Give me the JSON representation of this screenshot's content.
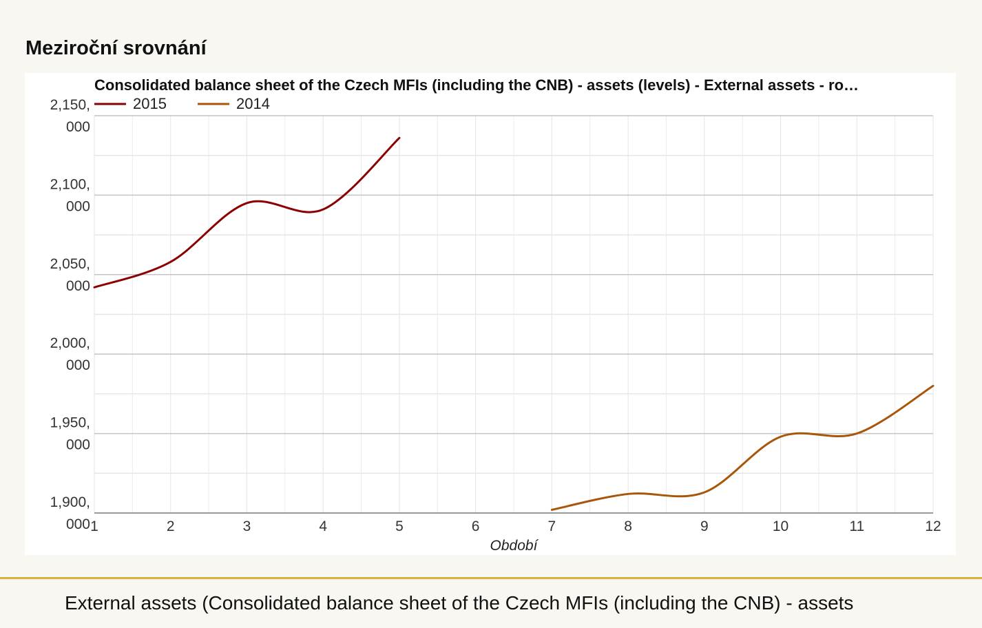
{
  "page": {
    "section_title": "Meziroční srovnání",
    "caption": "External assets (Consolidated balance sheet of the Czech MFIs (including the CNB) - assets"
  },
  "chart_data": {
    "type": "line",
    "title": "Consolidated balance sheet of the Czech MFIs (including the CNB) - assets (levels) - External assets - ro…",
    "xlabel": "Období",
    "ylabel": "",
    "x_ticks": [
      "1",
      "2",
      "3",
      "4",
      "5",
      "6",
      "7",
      "8",
      "9",
      "10",
      "11",
      "12"
    ],
    "y_ticks": [
      {
        "value": 1900000,
        "line1": "1,900,",
        "line2": "000"
      },
      {
        "value": 1950000,
        "line1": "1,950,",
        "line2": "000"
      },
      {
        "value": 2000000,
        "line1": "2,000,",
        "line2": "000"
      },
      {
        "value": 2050000,
        "line1": "2,050,",
        "line2": "000"
      },
      {
        "value": 2100000,
        "line1": "2,100,",
        "line2": "000"
      },
      {
        "value": 2150000,
        "line1": "2,150,",
        "line2": "000"
      }
    ],
    "xlim": [
      1,
      12
    ],
    "ylim": [
      1900000,
      2150000
    ],
    "grid": true,
    "legend_position": "top-left",
    "series": [
      {
        "name": "2015",
        "color": "#8b0000",
        "x": [
          1,
          2,
          3,
          4,
          5
        ],
        "values": [
          2042000,
          2058000,
          2095000,
          2091000,
          2136000
        ]
      },
      {
        "name": "2014",
        "color": "#a8560a",
        "x": [
          7,
          8,
          9,
          10,
          11,
          12
        ],
        "values": [
          1902000,
          1912000,
          1913000,
          1948000,
          1950000,
          1980000
        ]
      }
    ]
  }
}
